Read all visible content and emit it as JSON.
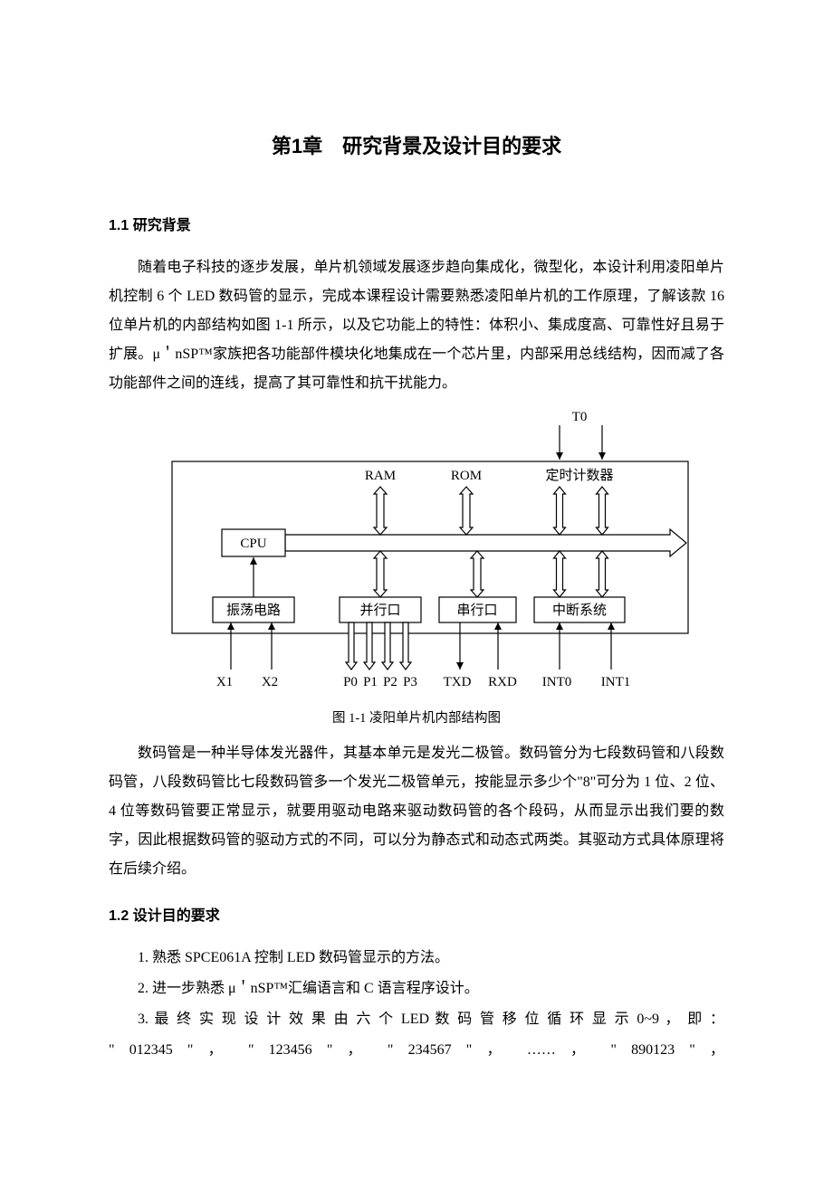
{
  "chapter": {
    "title": "第1章　研究背景及设计目的要求"
  },
  "section1": {
    "heading": "1.1 研究背景",
    "para1": "随着电子科技的逐步发展，单片机领域发展逐步趋向集成化，微型化，本设计利用凌阳单片机控制 6 个 LED 数码管的显示，完成本课程设计需要熟悉凌阳单片机的工作原理，了解该款 16 位单片机的内部结构如图 1-1 所示，以及它功能上的特性：体积小、集成度高、可靠性好且易于扩展。μ＇nSP™家族把各功能部件模块化地集成在一个芯片里，内部采用总线结构，因而减了各功能部件之间的连线，提高了其可靠性和抗干扰能力。",
    "para2": "数码管是一种半导体发光器件，其基本单元是发光二极管。数码管分为七段数码管和八段数码管，八段数码管比七段数码管多一个发光二极管单元，按能显示多少个\"8\"可分为 1 位、2 位、4 位等数码管要正常显示，就要用驱动电路来驱动数码管的各个段码，从而显示出我们要的数字，因此根据数码管的驱动方式的不同，可以分为静态式和动态式两类。其驱动方式具体原理将在后续介绍。"
  },
  "figure": {
    "caption": "图 1-1 凌阳单片机内部结构图",
    "labels": {
      "t0": "T0",
      "ram": "RAM",
      "rom": "ROM",
      "timer": "定时计数器",
      "cpu": "CPU",
      "osc": "振荡电路",
      "parallel": "并行口",
      "serial": "串行口",
      "interrupt": "中断系统",
      "x1": "X1",
      "x2": "X2",
      "p0": "P0",
      "p1": "P1",
      "p2": "P2",
      "p3": "P3",
      "txd": "TXD",
      "rxd": "RXD",
      "int0": "INT0",
      "int1": "INT1"
    },
    "style": {
      "stroke": "#000000",
      "fill": "#ffffff",
      "font_family": "Times New Roman, SimSun, serif",
      "label_fontsize": 15,
      "cn_fontsize": 15,
      "stroke_width": 1.2
    }
  },
  "section2": {
    "heading": "1.2 设计目的要求",
    "item1": "1. 熟悉 SPCE061A 控制 LED 数码管显示的方法。",
    "item2": "2. 进一步熟悉 μ＇nSP™汇编语言和 C 语言程序设计。",
    "item3a": "3. 最 终 实 现 设 计 效 果 由 六 个 LED 数 码 管 移 位 循 环 显 示 0~9 ， 即 ：",
    "item3b": "\" 012345 \" ， \" 123456 \" ， \" 234567 \" ， …… ， \" 890123 \" ，"
  }
}
